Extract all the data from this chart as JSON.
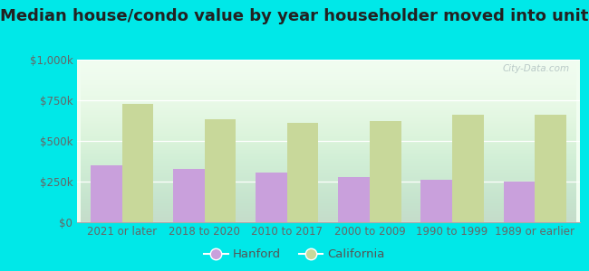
{
  "title": "Median house/condo value by year householder moved into unit",
  "categories": [
    "2021 or later",
    "2018 to 2020",
    "2010 to 2017",
    "2000 to 2009",
    "1990 to 1999",
    "1989 or earlier"
  ],
  "hanford_values": [
    350000,
    330000,
    305000,
    280000,
    260000,
    250000
  ],
  "california_values": [
    730000,
    635000,
    610000,
    620000,
    660000,
    660000
  ],
  "hanford_color": "#c9a0dc",
  "california_color": "#c8d89a",
  "background_color": "#00e8e8",
  "ylim": [
    0,
    1000000
  ],
  "yticks": [
    0,
    250000,
    500000,
    750000,
    1000000
  ],
  "ytick_labels": [
    "$0",
    "$250k",
    "$500k",
    "$750k",
    "$1,000k"
  ],
  "legend_hanford": "Hanford",
  "legend_california": "California",
  "watermark": "City-Data.com",
  "title_fontsize": 13,
  "tick_fontsize": 8.5,
  "legend_fontsize": 9.5,
  "bar_width": 0.38,
  "plot_bg_top": "#f0fdf0",
  "plot_bg_bottom": "#d8f0d8"
}
